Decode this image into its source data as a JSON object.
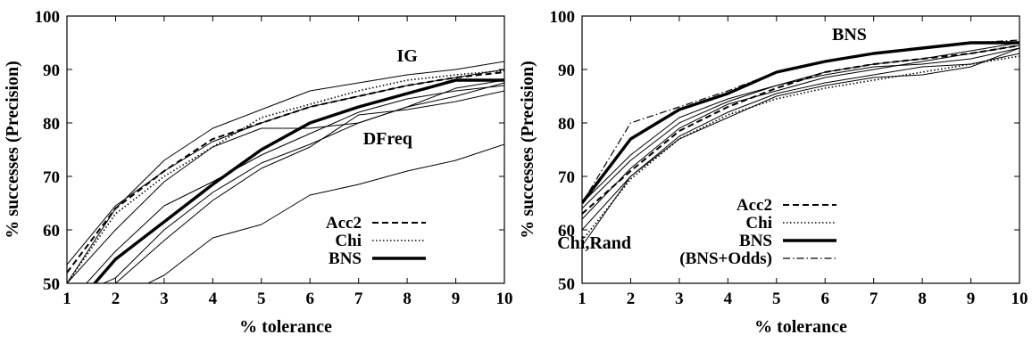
{
  "chart_data": [
    {
      "type": "line",
      "xlabel": "% tolerance",
      "ylabel": "% successes (Precision)",
      "xlim": [
        1,
        10
      ],
      "ylim": [
        50,
        100
      ],
      "xticks": [
        1,
        2,
        3,
        4,
        5,
        6,
        7,
        8,
        9,
        10
      ],
      "yticks": [
        50,
        60,
        70,
        80,
        90,
        100
      ],
      "grid": false,
      "legend_position": "bottom-right",
      "annotations": [
        {
          "text": "IG",
          "x": 8.0,
          "y": 91.5
        },
        {
          "text": "DFreq",
          "x": 7.6,
          "y": 76.0
        }
      ],
      "x": [
        1,
        2,
        3,
        4,
        5,
        6,
        7,
        8,
        9,
        10
      ],
      "series": [
        {
          "name": "Acc2",
          "style": "dashed",
          "width": 2.0,
          "values": [
            52,
            64,
            71,
            77,
            80,
            83,
            85,
            87,
            88.5,
            89.5
          ]
        },
        {
          "name": "Chi",
          "style": "dotted",
          "width": 1.6,
          "values": [
            50,
            63,
            70,
            75.5,
            81,
            83.5,
            86,
            88,
            89,
            89.8
          ]
        },
        {
          "name": "BNS",
          "style": "solid",
          "width": 3.4,
          "values": [
            44,
            54.5,
            61.5,
            68.5,
            75,
            80,
            83,
            85.5,
            88,
            88
          ]
        },
        {
          "name": "",
          "style": "solid",
          "width": 1,
          "values": [
            50,
            64,
            73,
            79,
            82.5,
            86,
            87.5,
            89,
            90,
            91.5
          ]
        },
        {
          "name": "",
          "style": "solid",
          "width": 1,
          "values": [
            53.5,
            64.5,
            71,
            76.5,
            80,
            83,
            85,
            87,
            88.5,
            90
          ]
        },
        {
          "name": "",
          "style": "solid",
          "width": 1,
          "values": [
            46,
            56,
            64.5,
            69,
            74,
            78,
            82,
            84.5,
            86,
            87
          ]
        },
        {
          "name": "",
          "style": "solid",
          "width": 1,
          "values": [
            47,
            51,
            60,
            67,
            72.5,
            76,
            80,
            83,
            85,
            87.5
          ]
        },
        {
          "name": "",
          "style": "solid",
          "width": 1,
          "values": [
            45,
            50,
            58,
            65.5,
            71.5,
            75.5,
            81.5,
            82.5,
            84,
            86
          ]
        },
        {
          "name": "",
          "style": "solid",
          "width": 1,
          "values": [
            50,
            60,
            69,
            75.5,
            79,
            79,
            80,
            83,
            86.5,
            88
          ]
        },
        {
          "name": "",
          "style": "solid",
          "width": 1,
          "values": [
            42,
            47,
            51.5,
            58.5,
            61,
            66.5,
            68.5,
            71,
            73,
            76
          ]
        }
      ]
    },
    {
      "type": "line",
      "xlabel": "% tolerance",
      "ylabel": "% successes (Precision)",
      "xlim": [
        1,
        10
      ],
      "ylim": [
        50,
        100
      ],
      "xticks": [
        1,
        2,
        3,
        4,
        5,
        6,
        7,
        8,
        9,
        10
      ],
      "yticks": [
        50,
        60,
        70,
        80,
        90,
        100
      ],
      "grid": false,
      "legend_position": "bottom-right",
      "annotations": [
        {
          "text": "BNS",
          "x": 6.5,
          "y": 95.5
        },
        {
          "text": "Chi,Rand",
          "x": 1.25,
          "y": 56.5
        }
      ],
      "x": [
        1,
        2,
        3,
        4,
        5,
        6,
        7,
        8,
        9,
        10
      ],
      "series": [
        {
          "name": "Acc2",
          "style": "dashed",
          "width": 2.0,
          "values": [
            63,
            71,
            78.5,
            83,
            86.5,
            89.5,
            91,
            92,
            93,
            94.5
          ]
        },
        {
          "name": "Chi",
          "style": "dotted",
          "width": 1.6,
          "values": [
            58,
            69.5,
            77,
            81.5,
            84.5,
            86.5,
            88,
            89.5,
            91,
            92.5
          ]
        },
        {
          "name": "BNS",
          "style": "solid",
          "width": 3.4,
          "values": [
            65,
            77,
            82.5,
            85.5,
            89.5,
            91.5,
            93,
            94,
            95,
            95
          ]
        },
        {
          "name": "(BNS+Odds)",
          "style": "dashdot",
          "width": 1.2,
          "values": [
            65,
            80,
            83,
            86,
            89.5,
            91.5,
            93,
            94,
            95,
            95.5
          ]
        },
        {
          "name": "",
          "style": "solid",
          "width": 1,
          "values": [
            64,
            73,
            80,
            84,
            87,
            89.5,
            91,
            92,
            93.5,
            95
          ]
        },
        {
          "name": "",
          "style": "solid",
          "width": 1,
          "values": [
            62,
            71.5,
            79,
            83.5,
            86,
            88.5,
            90,
            91.5,
            93,
            94.5
          ]
        },
        {
          "name": "",
          "style": "solid",
          "width": 1,
          "values": [
            60,
            70,
            77.5,
            82,
            85.5,
            87.5,
            89,
            90.5,
            91,
            93
          ]
        },
        {
          "name": "",
          "style": "solid",
          "width": 1,
          "values": [
            65,
            74,
            81,
            84.5,
            87,
            89,
            90.5,
            91,
            92,
            94
          ]
        },
        {
          "name": "",
          "style": "solid",
          "width": 1,
          "values": [
            57,
            70,
            77,
            81,
            85,
            87,
            88.5,
            89,
            90.5,
            94
          ]
        }
      ]
    }
  ]
}
